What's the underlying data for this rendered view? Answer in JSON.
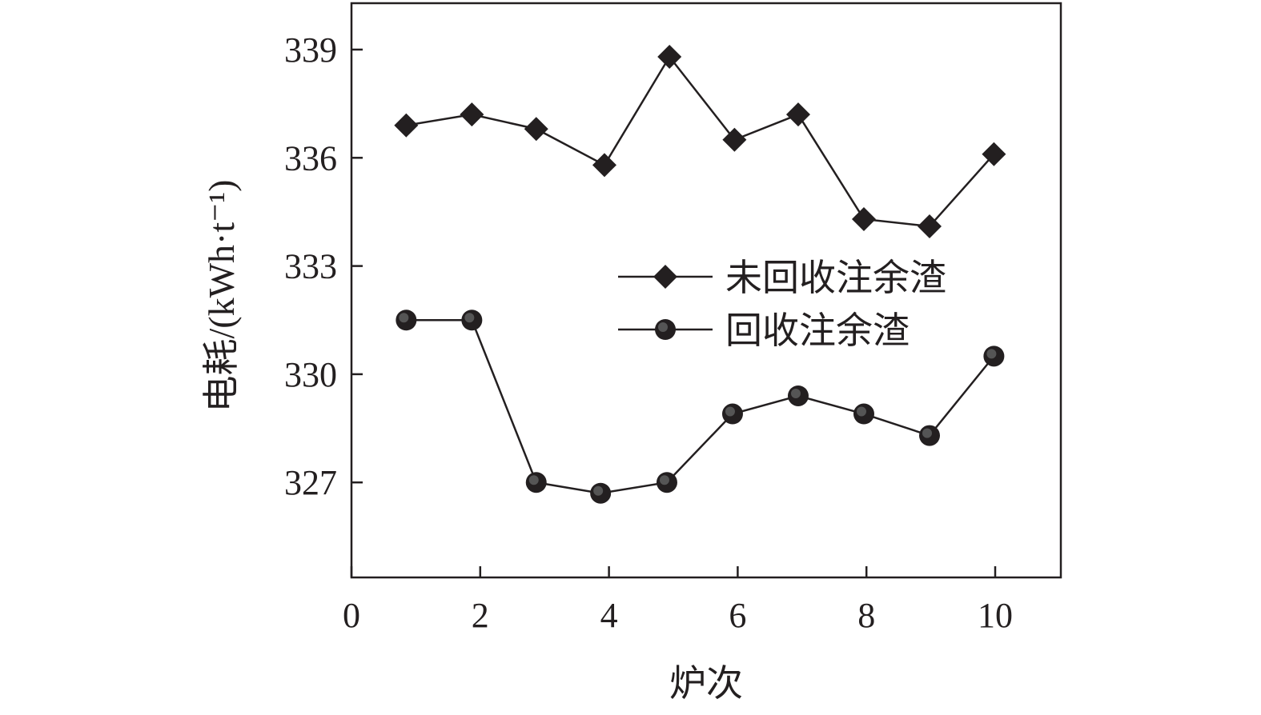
{
  "chart_data": {
    "type": "line",
    "xlabel": "炉次",
    "ylabel": "电耗/(kWh·t⁻¹)",
    "xlim": [
      0,
      11
    ],
    "ylim": [
      324.4,
      340.3
    ],
    "xticks": [
      0,
      2,
      4,
      6,
      8,
      10
    ],
    "yticks": [
      327,
      330,
      333,
      336,
      339
    ],
    "grid": false,
    "legend_position": "center-right",
    "series": [
      {
        "name": "未回收注余渣",
        "marker": "diamond",
        "color": "#231f20",
        "x": [
          0.85,
          1.87,
          2.87,
          3.93,
          4.94,
          5.95,
          6.94,
          7.96,
          8.98,
          9.98
        ],
        "y": [
          336.9,
          337.2,
          336.8,
          335.8,
          338.8,
          336.5,
          337.2,
          334.3,
          334.1,
          336.1
        ]
      },
      {
        "name": "回收注余渣",
        "marker": "circle",
        "color": "#231f20",
        "x": [
          0.85,
          1.87,
          2.87,
          3.87,
          4.9,
          5.92,
          6.94,
          7.96,
          8.98,
          9.98
        ],
        "y": [
          331.5,
          331.5,
          327.0,
          326.7,
          327.0,
          328.9,
          329.4,
          328.9,
          328.3,
          330.5
        ]
      }
    ]
  }
}
